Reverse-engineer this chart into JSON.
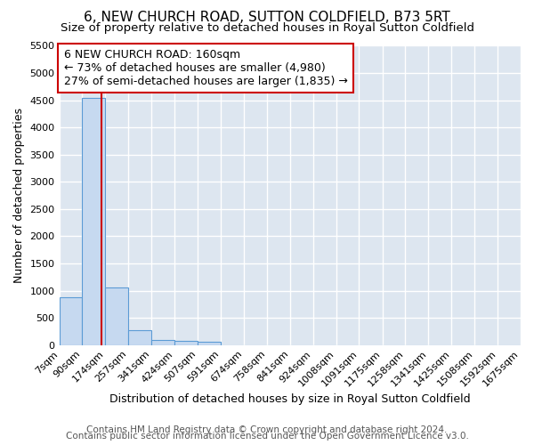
{
  "title": "6, NEW CHURCH ROAD, SUTTON COLDFIELD, B73 5RT",
  "subtitle": "Size of property relative to detached houses in Royal Sutton Coldfield",
  "xlabel": "Distribution of detached houses by size in Royal Sutton Coldfield",
  "ylabel": "Number of detached properties",
  "footer1": "Contains HM Land Registry data © Crown copyright and database right 2024.",
  "footer2": "Contains public sector information licensed under the Open Government Licence v3.0.",
  "bin_edges": [
    7,
    90,
    174,
    257,
    341,
    424,
    507,
    591,
    674,
    758,
    841,
    924,
    1008,
    1091,
    1175,
    1258,
    1341,
    1425,
    1508,
    1592,
    1675
  ],
  "bin_counts": [
    880,
    4550,
    1060,
    275,
    90,
    75,
    55,
    0,
    0,
    0,
    0,
    0,
    0,
    0,
    0,
    0,
    0,
    0,
    0,
    0
  ],
  "bar_color": "#c6d9f0",
  "bar_edge_color": "#5b9bd5",
  "property_size": 160,
  "property_label": "6 NEW CHURCH ROAD: 160sqm",
  "pct_smaller": 73,
  "num_smaller": 4980,
  "pct_larger": 27,
  "num_larger": 1835,
  "vline_color": "#cc0000",
  "annotation_box_edge": "#cc0000",
  "ylim": [
    0,
    5500
  ],
  "yticks": [
    0,
    500,
    1000,
    1500,
    2000,
    2500,
    3000,
    3500,
    4000,
    4500,
    5000,
    5500
  ],
  "fig_bg_color": "#ffffff",
  "plot_bg_color": "#dde6f0",
  "grid_color": "#ffffff",
  "title_fontsize": 11,
  "subtitle_fontsize": 9.5,
  "axis_label_fontsize": 9,
  "tick_fontsize": 8,
  "annotation_fontsize": 9,
  "footer_fontsize": 7.5
}
